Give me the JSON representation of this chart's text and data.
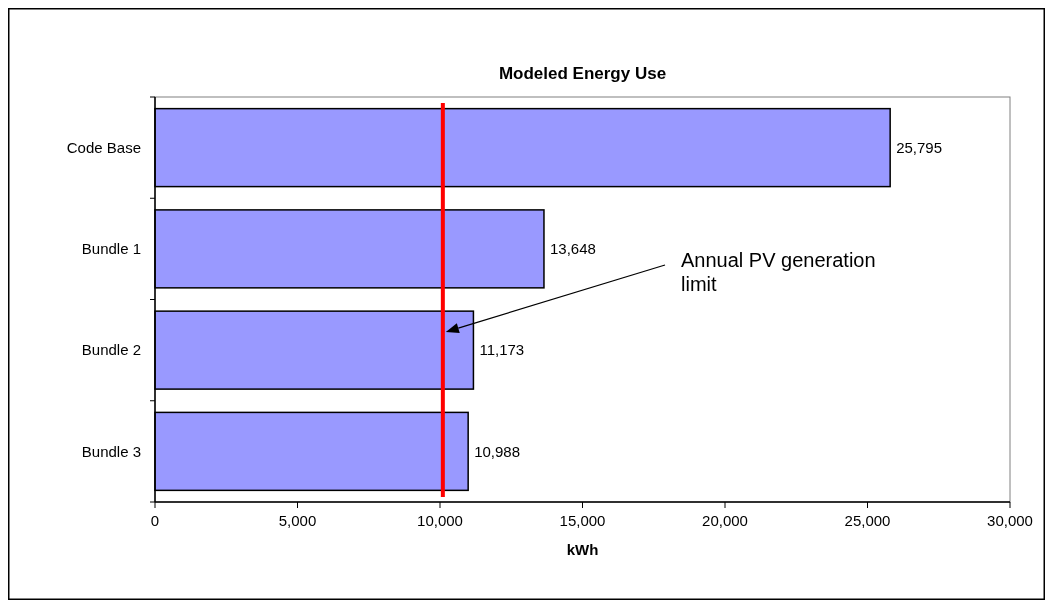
{
  "chart_data": {
    "type": "bar",
    "orientation": "horizontal",
    "title": "Modeled Energy Use",
    "xlabel": "kWh",
    "categories": [
      "Code Base",
      "Bundle 1",
      "Bundle 2",
      "Bundle 3"
    ],
    "values": [
      25795,
      13648,
      11173,
      10988
    ],
    "color": "#9999ff",
    "value_labels": [
      "25,795",
      "13,648",
      "11,173",
      "10,988"
    ],
    "xlim": [
      0,
      30000
    ],
    "xticks": [
      {
        "value": 0,
        "label": "0"
      },
      {
        "value": 5000,
        "label": "5,000"
      },
      {
        "value": 10000,
        "label": "10,000"
      },
      {
        "value": 15000,
        "label": "15,000"
      },
      {
        "value": 20000,
        "label": "20,000"
      },
      {
        "value": 25000,
        "label": "25,000"
      },
      {
        "value": 30000,
        "label": "30,000"
      }
    ],
    "ref_lines": [
      {
        "axis": "x",
        "value": 10100,
        "color": "#ff0000"
      }
    ],
    "annotations": [
      "Annual PV generation limit"
    ],
    "grid": false
  }
}
